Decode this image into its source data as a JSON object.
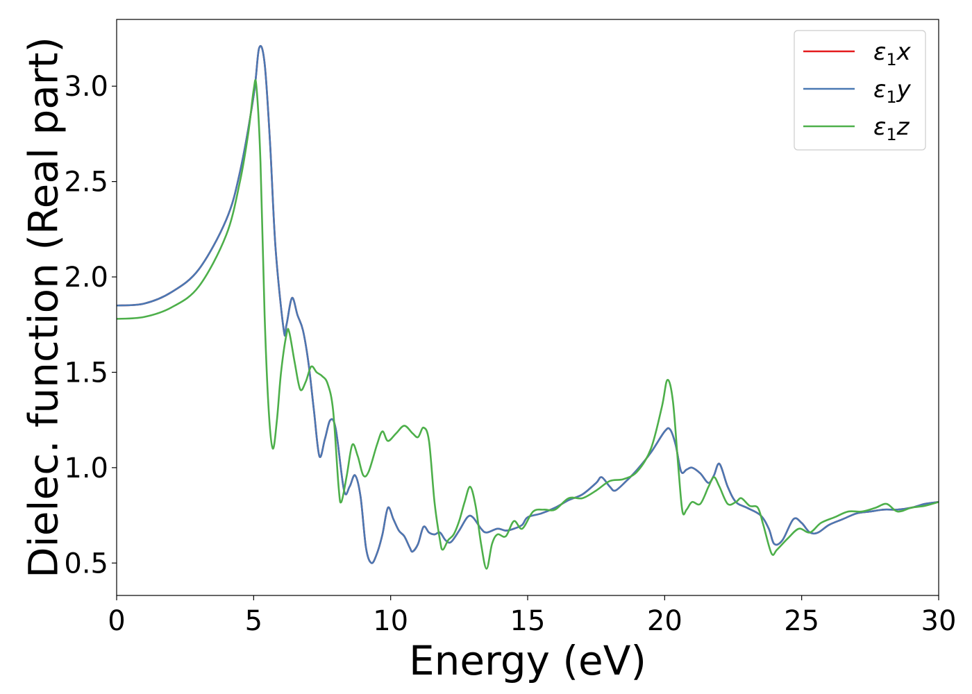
{
  "chart_data": {
    "type": "line",
    "title": "",
    "xlabel": "Energy (eV)",
    "ylabel": "Dielec. function (Real part)",
    "xlim": [
      0,
      30
    ],
    "ylim": [
      0.33,
      3.35
    ],
    "xticks": [
      0,
      5,
      10,
      15,
      20,
      25,
      30
    ],
    "xtick_labels": [
      "0",
      "5",
      "10",
      "15",
      "20",
      "25",
      "30"
    ],
    "yticks": [
      0.5,
      1.0,
      1.5,
      2.0,
      2.5,
      3.0
    ],
    "ytick_labels": [
      "0.5",
      "1.0",
      "1.5",
      "2.0",
      "2.5",
      "3.0"
    ],
    "grid": false,
    "legend_position": "top-right",
    "series": [
      {
        "name": "ε₁x",
        "legend_base": "ε",
        "legend_sub": "1",
        "legend_suffix": "x",
        "color": "#e41a1c",
        "points": [
          [
            0,
            1.85
          ],
          [
            1,
            1.86
          ],
          [
            2,
            1.92
          ],
          [
            3,
            2.04
          ],
          [
            4,
            2.3
          ],
          [
            4.5,
            2.55
          ],
          [
            5,
            2.95
          ],
          [
            5.2,
            3.2
          ],
          [
            5.4,
            3.12
          ],
          [
            5.6,
            2.7
          ],
          [
            5.8,
            2.15
          ],
          [
            6.1,
            1.72
          ],
          [
            6.2,
            1.75
          ],
          [
            6.4,
            1.89
          ],
          [
            6.6,
            1.8
          ],
          [
            6.8,
            1.72
          ],
          [
            7.0,
            1.55
          ],
          [
            7.2,
            1.3
          ],
          [
            7.4,
            1.06
          ],
          [
            7.6,
            1.15
          ],
          [
            7.8,
            1.25
          ],
          [
            8.0,
            1.2
          ],
          [
            8.3,
            0.88
          ],
          [
            8.5,
            0.9
          ],
          [
            8.7,
            0.96
          ],
          [
            8.9,
            0.85
          ],
          [
            9.1,
            0.58
          ],
          [
            9.3,
            0.5
          ],
          [
            9.5,
            0.55
          ],
          [
            9.7,
            0.65
          ],
          [
            9.9,
            0.79
          ],
          [
            10.1,
            0.73
          ],
          [
            10.3,
            0.67
          ],
          [
            10.5,
            0.64
          ],
          [
            10.7,
            0.58
          ],
          [
            10.8,
            0.56
          ],
          [
            11.0,
            0.6
          ],
          [
            11.2,
            0.69
          ],
          [
            11.4,
            0.66
          ],
          [
            11.6,
            0.65
          ],
          [
            11.8,
            0.66
          ],
          [
            12.0,
            0.62
          ],
          [
            12.2,
            0.61
          ],
          [
            12.5,
            0.67
          ],
          [
            12.8,
            0.74
          ],
          [
            13.0,
            0.74
          ],
          [
            13.3,
            0.68
          ],
          [
            13.5,
            0.66
          ],
          [
            13.9,
            0.68
          ],
          [
            14.2,
            0.67
          ],
          [
            14.5,
            0.68
          ],
          [
            14.8,
            0.7
          ],
          [
            15.0,
            0.74
          ],
          [
            15.5,
            0.76
          ],
          [
            16.0,
            0.79
          ],
          [
            16.5,
            0.83
          ],
          [
            17.0,
            0.86
          ],
          [
            17.5,
            0.92
          ],
          [
            17.7,
            0.95
          ],
          [
            18.0,
            0.9
          ],
          [
            18.2,
            0.88
          ],
          [
            18.6,
            0.93
          ],
          [
            19.0,
            0.99
          ],
          [
            19.5,
            1.08
          ],
          [
            20.0,
            1.19
          ],
          [
            20.2,
            1.2
          ],
          [
            20.4,
            1.12
          ],
          [
            20.6,
            0.98
          ],
          [
            20.8,
            0.99
          ],
          [
            21.0,
            1.0
          ],
          [
            21.3,
            0.97
          ],
          [
            21.6,
            0.92
          ],
          [
            21.8,
            0.96
          ],
          [
            22.0,
            1.02
          ],
          [
            22.3,
            0.9
          ],
          [
            22.6,
            0.82
          ],
          [
            23.0,
            0.79
          ],
          [
            23.5,
            0.75
          ],
          [
            23.8,
            0.68
          ],
          [
            24.0,
            0.6
          ],
          [
            24.3,
            0.62
          ],
          [
            24.7,
            0.73
          ],
          [
            25.0,
            0.71
          ],
          [
            25.3,
            0.66
          ],
          [
            25.6,
            0.66
          ],
          [
            26.0,
            0.7
          ],
          [
            26.5,
            0.73
          ],
          [
            27.0,
            0.76
          ],
          [
            27.5,
            0.77
          ],
          [
            28.0,
            0.78
          ],
          [
            28.5,
            0.78
          ],
          [
            29.0,
            0.79
          ],
          [
            29.5,
            0.81
          ],
          [
            30.0,
            0.82
          ]
        ]
      },
      {
        "name": "ε₁y",
        "legend_base": "ε",
        "legend_sub": "1",
        "legend_suffix": "y",
        "color": "#4a78b3",
        "points": [
          [
            0,
            1.85
          ],
          [
            1,
            1.86
          ],
          [
            2,
            1.92
          ],
          [
            3,
            2.04
          ],
          [
            4,
            2.3
          ],
          [
            4.5,
            2.55
          ],
          [
            5,
            2.95
          ],
          [
            5.2,
            3.2
          ],
          [
            5.4,
            3.12
          ],
          [
            5.6,
            2.7
          ],
          [
            5.8,
            2.15
          ],
          [
            6.1,
            1.72
          ],
          [
            6.2,
            1.75
          ],
          [
            6.4,
            1.89
          ],
          [
            6.6,
            1.8
          ],
          [
            6.8,
            1.72
          ],
          [
            7.0,
            1.55
          ],
          [
            7.2,
            1.3
          ],
          [
            7.4,
            1.06
          ],
          [
            7.6,
            1.15
          ],
          [
            7.8,
            1.25
          ],
          [
            8.0,
            1.2
          ],
          [
            8.3,
            0.88
          ],
          [
            8.5,
            0.9
          ],
          [
            8.7,
            0.96
          ],
          [
            8.9,
            0.85
          ],
          [
            9.1,
            0.58
          ],
          [
            9.3,
            0.5
          ],
          [
            9.5,
            0.55
          ],
          [
            9.7,
            0.65
          ],
          [
            9.9,
            0.79
          ],
          [
            10.1,
            0.73
          ],
          [
            10.3,
            0.67
          ],
          [
            10.5,
            0.64
          ],
          [
            10.7,
            0.58
          ],
          [
            10.8,
            0.56
          ],
          [
            11.0,
            0.6
          ],
          [
            11.2,
            0.69
          ],
          [
            11.4,
            0.66
          ],
          [
            11.6,
            0.65
          ],
          [
            11.8,
            0.66
          ],
          [
            12.0,
            0.62
          ],
          [
            12.2,
            0.61
          ],
          [
            12.5,
            0.67
          ],
          [
            12.8,
            0.74
          ],
          [
            13.0,
            0.74
          ],
          [
            13.3,
            0.68
          ],
          [
            13.5,
            0.66
          ],
          [
            13.9,
            0.68
          ],
          [
            14.2,
            0.67
          ],
          [
            14.5,
            0.68
          ],
          [
            14.8,
            0.7
          ],
          [
            15.0,
            0.74
          ],
          [
            15.5,
            0.76
          ],
          [
            16.0,
            0.79
          ],
          [
            16.5,
            0.83
          ],
          [
            17.0,
            0.86
          ],
          [
            17.5,
            0.92
          ],
          [
            17.7,
            0.95
          ],
          [
            18.0,
            0.9
          ],
          [
            18.2,
            0.88
          ],
          [
            18.6,
            0.93
          ],
          [
            19.0,
            0.99
          ],
          [
            19.5,
            1.08
          ],
          [
            20.0,
            1.19
          ],
          [
            20.2,
            1.2
          ],
          [
            20.4,
            1.12
          ],
          [
            20.6,
            0.98
          ],
          [
            20.8,
            0.99
          ],
          [
            21.0,
            1.0
          ],
          [
            21.3,
            0.97
          ],
          [
            21.6,
            0.92
          ],
          [
            21.8,
            0.96
          ],
          [
            22.0,
            1.02
          ],
          [
            22.3,
            0.9
          ],
          [
            22.6,
            0.82
          ],
          [
            23.0,
            0.79
          ],
          [
            23.5,
            0.75
          ],
          [
            23.8,
            0.68
          ],
          [
            24.0,
            0.6
          ],
          [
            24.3,
            0.62
          ],
          [
            24.7,
            0.73
          ],
          [
            25.0,
            0.71
          ],
          [
            25.3,
            0.66
          ],
          [
            25.6,
            0.66
          ],
          [
            26.0,
            0.7
          ],
          [
            26.5,
            0.73
          ],
          [
            27.0,
            0.76
          ],
          [
            27.5,
            0.77
          ],
          [
            28.0,
            0.78
          ],
          [
            28.5,
            0.78
          ],
          [
            29.0,
            0.79
          ],
          [
            29.5,
            0.81
          ],
          [
            30.0,
            0.82
          ]
        ]
      },
      {
        "name": "ε₁z",
        "legend_base": "ε",
        "legend_sub": "1",
        "legend_suffix": "z",
        "color": "#4daf4a",
        "points": [
          [
            0,
            1.78
          ],
          [
            1,
            1.79
          ],
          [
            2,
            1.84
          ],
          [
            3,
            1.95
          ],
          [
            4,
            2.22
          ],
          [
            4.5,
            2.5
          ],
          [
            4.8,
            2.75
          ],
          [
            5.0,
            2.98
          ],
          [
            5.1,
            3.0
          ],
          [
            5.25,
            2.6
          ],
          [
            5.4,
            1.8
          ],
          [
            5.55,
            1.3
          ],
          [
            5.7,
            1.1
          ],
          [
            5.85,
            1.25
          ],
          [
            6.0,
            1.5
          ],
          [
            6.2,
            1.7
          ],
          [
            6.3,
            1.71
          ],
          [
            6.5,
            1.55
          ],
          [
            6.7,
            1.41
          ],
          [
            6.9,
            1.45
          ],
          [
            7.1,
            1.53
          ],
          [
            7.3,
            1.5
          ],
          [
            7.5,
            1.48
          ],
          [
            7.7,
            1.44
          ],
          [
            7.9,
            1.3
          ],
          [
            8.1,
            0.9
          ],
          [
            8.2,
            0.82
          ],
          [
            8.4,
            0.96
          ],
          [
            8.6,
            1.12
          ],
          [
            8.8,
            1.06
          ],
          [
            9.0,
            0.96
          ],
          [
            9.2,
            0.98
          ],
          [
            9.5,
            1.12
          ],
          [
            9.7,
            1.19
          ],
          [
            9.9,
            1.14
          ],
          [
            10.2,
            1.18
          ],
          [
            10.5,
            1.22
          ],
          [
            10.8,
            1.18
          ],
          [
            11.0,
            1.16
          ],
          [
            11.2,
            1.21
          ],
          [
            11.4,
            1.14
          ],
          [
            11.6,
            0.82
          ],
          [
            11.8,
            0.62
          ],
          [
            11.9,
            0.57
          ],
          [
            12.1,
            0.62
          ],
          [
            12.3,
            0.65
          ],
          [
            12.5,
            0.72
          ],
          [
            12.7,
            0.82
          ],
          [
            12.9,
            0.9
          ],
          [
            13.1,
            0.8
          ],
          [
            13.3,
            0.6
          ],
          [
            13.5,
            0.47
          ],
          [
            13.7,
            0.6
          ],
          [
            13.9,
            0.65
          ],
          [
            14.2,
            0.64
          ],
          [
            14.5,
            0.72
          ],
          [
            14.8,
            0.68
          ],
          [
            15.2,
            0.77
          ],
          [
            15.6,
            0.78
          ],
          [
            16.0,
            0.78
          ],
          [
            16.5,
            0.84
          ],
          [
            17.0,
            0.84
          ],
          [
            17.5,
            0.88
          ],
          [
            18.0,
            0.93
          ],
          [
            18.5,
            0.94
          ],
          [
            19.0,
            0.98
          ],
          [
            19.5,
            1.1
          ],
          [
            19.9,
            1.32
          ],
          [
            20.1,
            1.46
          ],
          [
            20.3,
            1.35
          ],
          [
            20.5,
            1.0
          ],
          [
            20.65,
            0.77
          ],
          [
            20.8,
            0.78
          ],
          [
            21.0,
            0.82
          ],
          [
            21.3,
            0.81
          ],
          [
            21.6,
            0.9
          ],
          [
            21.8,
            0.95
          ],
          [
            22.0,
            0.9
          ],
          [
            22.3,
            0.81
          ],
          [
            22.6,
            0.82
          ],
          [
            22.8,
            0.84
          ],
          [
            23.1,
            0.8
          ],
          [
            23.4,
            0.79
          ],
          [
            23.6,
            0.7
          ],
          [
            23.9,
            0.55
          ],
          [
            24.1,
            0.57
          ],
          [
            24.5,
            0.63
          ],
          [
            24.9,
            0.68
          ],
          [
            25.3,
            0.66
          ],
          [
            25.7,
            0.71
          ],
          [
            26.2,
            0.74
          ],
          [
            26.7,
            0.77
          ],
          [
            27.2,
            0.77
          ],
          [
            27.7,
            0.79
          ],
          [
            28.1,
            0.81
          ],
          [
            28.5,
            0.77
          ],
          [
            29.0,
            0.79
          ],
          [
            29.5,
            0.8
          ],
          [
            30.0,
            0.82
          ]
        ]
      }
    ]
  }
}
